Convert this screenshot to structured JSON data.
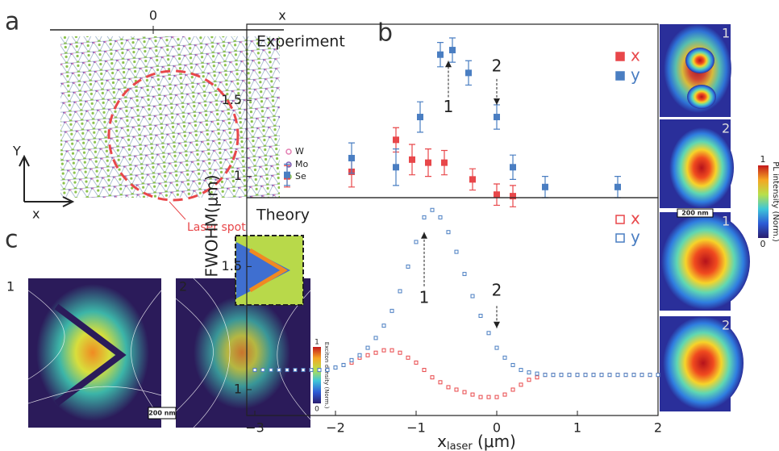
{
  "panel_labels": [
    "a",
    "b",
    "c"
  ],
  "lattice": {
    "axis_origin": "0",
    "axis_end": "x",
    "y_arrow": "Y",
    "x_arrow": "x",
    "legend": [
      "W",
      "Mo",
      "Se"
    ],
    "annotation": "Laser spot"
  },
  "chart_data": [
    {
      "type": "scatter",
      "title": "Experiment",
      "ylabel": "FWOHM(μm)",
      "marker": "filled",
      "xlim": [
        -3.1,
        2
      ],
      "ylim": [
        0.86,
        2.0
      ],
      "yticks": [
        1,
        1.5
      ],
      "series": [
        {
          "name": "x",
          "color": "#e8474a",
          "x": [
            -2.6,
            -1.8,
            -1.25,
            -1.05,
            -0.85,
            -0.65,
            -0.3,
            0,
            0.2
          ],
          "values": [
            1.0,
            1.03,
            1.24,
            1.11,
            1.09,
            1.09,
            0.98,
            0.88,
            0.87
          ],
          "errors": [
            0.07,
            0.1,
            0.08,
            0.1,
            0.09,
            0.08,
            0.07,
            0.07,
            0.07
          ]
        },
        {
          "name": "y",
          "color": "#4a7ec2",
          "x": [
            -2.6,
            -1.8,
            -1.25,
            -0.95,
            -0.7,
            -0.55,
            -0.35,
            0,
            0.2,
            0.6,
            1.5
          ],
          "values": [
            1.01,
            1.12,
            1.06,
            1.39,
            1.8,
            1.83,
            1.68,
            1.39,
            1.06,
            0.93,
            0.93
          ],
          "errors": [
            0.07,
            0.1,
            0.12,
            0.1,
            0.08,
            0.08,
            0.08,
            0.08,
            0.08,
            0.07,
            0.07
          ]
        }
      ],
      "annotations": [
        "1",
        "2"
      ]
    },
    {
      "type": "scatter",
      "title": "Theory",
      "xlabel": [
        "x",
        "laser",
        " (μm)"
      ],
      "marker": "open",
      "xlim": [
        -3.1,
        2
      ],
      "ylim": [
        0.895,
        1.78
      ],
      "xticks": [
        {
          "value": -3,
          "label": "−3"
        },
        {
          "value": -2,
          "label": "−2"
        },
        {
          "value": -1,
          "label": "−1"
        },
        0,
        1,
        2
      ],
      "yticks": [
        1,
        1.5
      ],
      "series": [
        {
          "name": "x",
          "color": "#e8474a",
          "x": [
            -3.0,
            -2.9,
            -2.8,
            -2.7,
            -2.6,
            -2.5,
            -2.4,
            -2.3,
            -2.2,
            -2.1,
            -2.0,
            -1.9,
            -1.8,
            -1.7,
            -1.6,
            -1.5,
            -1.4,
            -1.3,
            -1.2,
            -1.1,
            -1.0,
            -0.9,
            -0.8,
            -0.7,
            -0.6,
            -0.5,
            -0.4,
            -0.3,
            -0.2,
            -0.1,
            0.0,
            0.1,
            0.2,
            0.3,
            0.4,
            0.5,
            0.6,
            0.7,
            0.8,
            0.9,
            1.0,
            1.1,
            1.2,
            1.3,
            1.4,
            1.5,
            1.6,
            1.7,
            1.8,
            1.9,
            2.0
          ],
          "values": [
            1.08,
            1.08,
            1.08,
            1.08,
            1.08,
            1.08,
            1.08,
            1.08,
            1.08,
            1.08,
            1.09,
            1.1,
            1.11,
            1.13,
            1.14,
            1.15,
            1.16,
            1.16,
            1.15,
            1.13,
            1.11,
            1.08,
            1.05,
            1.03,
            1.01,
            1.0,
            0.99,
            0.98,
            0.97,
            0.97,
            0.97,
            0.98,
            1.0,
            1.02,
            1.04,
            1.05,
            1.06,
            1.06,
            1.06,
            1.06,
            1.06,
            1.06,
            1.06,
            1.06,
            1.06,
            1.06,
            1.06,
            1.06,
            1.06,
            1.06,
            1.06
          ]
        },
        {
          "name": "y",
          "color": "#4a7ec2",
          "x": [
            -3.0,
            -2.9,
            -2.8,
            -2.7,
            -2.6,
            -2.5,
            -2.4,
            -2.3,
            -2.2,
            -2.1,
            -2.0,
            -1.9,
            -1.8,
            -1.7,
            -1.6,
            -1.5,
            -1.4,
            -1.3,
            -1.2,
            -1.1,
            -1.0,
            -0.9,
            -0.8,
            -0.7,
            -0.6,
            -0.5,
            -0.4,
            -0.3,
            -0.2,
            -0.1,
            0.0,
            0.1,
            0.2,
            0.3,
            0.4,
            0.5,
            0.6,
            0.7,
            0.8,
            0.9,
            1.0,
            1.1,
            1.2,
            1.3,
            1.4,
            1.5,
            1.6,
            1.7,
            1.8,
            1.9,
            2.0
          ],
          "values": [
            1.08,
            1.08,
            1.08,
            1.08,
            1.08,
            1.08,
            1.08,
            1.08,
            1.08,
            1.08,
            1.09,
            1.1,
            1.12,
            1.14,
            1.17,
            1.21,
            1.26,
            1.32,
            1.4,
            1.5,
            1.6,
            1.7,
            1.73,
            1.7,
            1.64,
            1.56,
            1.47,
            1.38,
            1.3,
            1.23,
            1.17,
            1.13,
            1.1,
            1.08,
            1.07,
            1.065,
            1.06,
            1.06,
            1.06,
            1.06,
            1.06,
            1.06,
            1.06,
            1.06,
            1.06,
            1.06,
            1.06,
            1.06,
            1.06,
            1.06,
            1.06
          ]
        }
      ],
      "annotations": [
        "1",
        "2"
      ]
    }
  ],
  "maps_b": {
    "labels": [
      "1",
      "2",
      "1",
      "2"
    ],
    "scale_bar": "200 nm",
    "colorbar": {
      "max": "1",
      "min": "0",
      "label": "PL intensity (Norm.)"
    }
  },
  "panel_c": {
    "labels": [
      "1",
      "2"
    ],
    "scale_bar": "200 nm",
    "colorbar": {
      "max": "1",
      "min": "0",
      "label": "Exciton density (Norm.)"
    }
  }
}
